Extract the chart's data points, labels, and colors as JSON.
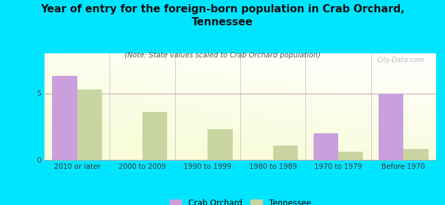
{
  "title": "Year of entry for the foreign-born population in Crab Orchard,\nTennessee",
  "subtitle": "(Note: State values scaled to Crab Orchard population)",
  "categories": [
    "2010 or later",
    "2000 to 2009",
    "1990 to 1999",
    "1980 to 1989",
    "1970 to 1979",
    "Before 1970"
  ],
  "crab_orchard": [
    6.3,
    0,
    0,
    0,
    2.0,
    5.0
  ],
  "tennessee": [
    5.3,
    3.6,
    2.3,
    1.1,
    0.6,
    0.8
  ],
  "bar_color_crab": "#c9a0dc",
  "bar_color_tn": "#c8d5a0",
  "background_outer": "#00e5ff",
  "yticks": [
    0,
    5
  ],
  "ylim": [
    0,
    8
  ],
  "bar_width": 0.38,
  "watermark": "City-Data.com",
  "legend_crab": "Crab Orchard",
  "legend_tn": "Tennessee",
  "title_fontsize": 11,
  "subtitle_fontsize": 7.5
}
